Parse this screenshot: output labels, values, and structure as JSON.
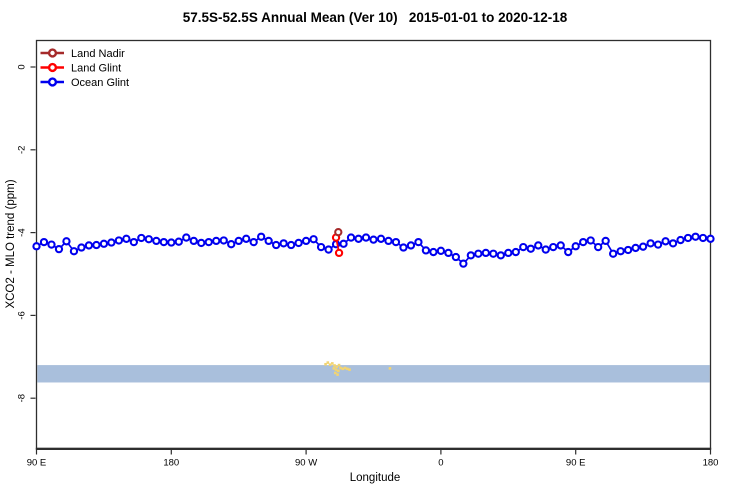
{
  "chart_data": {
    "type": "line",
    "title": "57.5S-52.5S Annual Mean (Ver 10)   2015-01-01 to 2020-12-18",
    "xlabel": "Longitude",
    "ylabel": "XCO2 - MLO trend (ppm)",
    "x_axis": {
      "note": "longitude axis wraps eastward: 90E to 180 to 90W to 0 to 90E to 180; deg = degrees east of 90E along the axis",
      "ticks": [
        {
          "label": "90 E",
          "deg": 0
        },
        {
          "label": "180",
          "deg": 90
        },
        {
          "label": "90 W",
          "deg": 180
        },
        {
          "label": "0",
          "deg": 270
        },
        {
          "label": "90 E",
          "deg": 360
        },
        {
          "label": "180",
          "deg": 450
        }
      ]
    },
    "y_axis": {
      "ticks": [
        {
          "label": "0",
          "ppm": 0
        },
        {
          "label": "-2",
          "ppm": -2
        },
        {
          "label": "-4",
          "ppm": -4
        },
        {
          "label": "-6",
          "ppm": -6
        },
        {
          "label": "-8",
          "ppm": -8
        }
      ],
      "range": [
        -9.85,
        0.65
      ]
    },
    "legend": {
      "position": "top-left",
      "items": [
        {
          "label": "Land Nadir",
          "color": "#A52A2A"
        },
        {
          "label": "Land Glint",
          "color": "#FF0000"
        },
        {
          "label": "Ocean Glint",
          "color": "#0000EE"
        }
      ]
    },
    "series": [
      {
        "name": "Ocean Glint",
        "color": "#0000EE",
        "marker": "open-circle",
        "deg_start": 0,
        "deg_step": 5,
        "values": [
          -4.33,
          -4.23,
          -4.29,
          -4.4,
          -4.21,
          -4.45,
          -4.36,
          -4.31,
          -4.3,
          -4.27,
          -4.24,
          -4.19,
          -4.15,
          -4.23,
          -4.13,
          -4.16,
          -4.2,
          -4.23,
          -4.24,
          -4.22,
          -4.12,
          -4.2,
          -4.25,
          -4.23,
          -4.2,
          -4.19,
          -4.28,
          -4.2,
          -4.15,
          -4.23,
          -4.1,
          -4.2,
          -4.3,
          -4.26,
          -4.3,
          -4.25,
          -4.2,
          -4.16,
          -4.35,
          -4.41,
          -4.28,
          -4.27,
          -4.12,
          -4.15,
          -4.12,
          -4.17,
          -4.15,
          -4.2,
          -4.23,
          -4.36,
          -4.31,
          -4.23,
          -4.43,
          -4.47,
          -4.44,
          -4.49,
          -4.59,
          -4.75,
          -4.55,
          -4.51,
          -4.49,
          -4.51,
          -4.55,
          -4.49,
          -4.47,
          -4.35,
          -4.39,
          -4.31,
          -4.41,
          -4.35,
          -4.31,
          -4.47,
          -4.33,
          -4.23,
          -4.19,
          -4.35,
          -4.2,
          -4.51,
          -4.45,
          -4.42,
          -4.37,
          -4.34,
          -4.26,
          -4.29,
          -4.21,
          -4.26,
          -4.18,
          -4.13,
          -4.1,
          -4.13,
          -4.15
        ]
      },
      {
        "name": "Land Glint",
        "color": "#FF0000",
        "marker": "open-circle",
        "points": [
          {
            "deg": 200,
            "ppm": -4.12
          },
          {
            "deg": 202,
            "ppm": -4.49
          }
        ]
      },
      {
        "name": "Land Nadir",
        "color": "#A52A2A",
        "marker": "open-circle",
        "points": [
          {
            "deg": 201.5,
            "ppm": -3.99
          }
        ]
      }
    ],
    "band": {
      "description": "surface-type strip along longitude: blue = ocean, yellow = land (southern South America)",
      "color": "#A9BFDC",
      "top_ppm": -7.2,
      "bottom_ppm": -7.62,
      "land_color": "#F2D471",
      "land_marks": [
        {
          "deg": 193,
          "ppm": -7.18
        },
        {
          "deg": 194.5,
          "ppm": -7.14
        },
        {
          "deg": 196,
          "ppm": -7.19
        },
        {
          "deg": 197.5,
          "ppm": -7.16
        },
        {
          "deg": 199,
          "ppm": -7.21
        },
        {
          "deg": 200.5,
          "ppm": -7.24
        },
        {
          "deg": 202,
          "ppm": -7.2
        },
        {
          "deg": 198.5,
          "ppm": -7.28
        },
        {
          "deg": 200,
          "ppm": -7.31
        },
        {
          "deg": 201.5,
          "ppm": -7.34
        },
        {
          "deg": 203,
          "ppm": -7.27
        },
        {
          "deg": 204.5,
          "ppm": -7.29
        },
        {
          "deg": 199.5,
          "ppm": -7.39
        },
        {
          "deg": 201,
          "ppm": -7.43
        },
        {
          "deg": 206,
          "ppm": -7.27
        },
        {
          "deg": 207.5,
          "ppm": -7.29
        },
        {
          "deg": 209,
          "ppm": -7.31
        },
        {
          "deg": 236,
          "ppm": -7.28
        }
      ]
    }
  }
}
